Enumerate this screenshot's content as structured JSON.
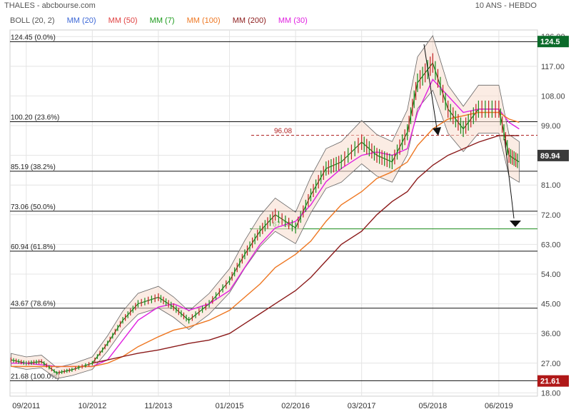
{
  "header": {
    "title": "THALES - abcbourse.com",
    "period": "10 ANS - HEBDO"
  },
  "legend": [
    {
      "label": "BOLL (20, 2)",
      "color": "#555555"
    },
    {
      "label": "MM (20)",
      "color": "#3a66d6"
    },
    {
      "label": "MM (50)",
      "color": "#e04040"
    },
    {
      "label": "MM (7)",
      "color": "#1a9a1a"
    },
    {
      "label": "MM (100)",
      "color": "#ee7722"
    },
    {
      "label": "MM (200)",
      "color": "#8b1a1a"
    },
    {
      "label": "MM (30)",
      "color": "#e020e0"
    }
  ],
  "chart_data": {
    "type": "line",
    "title": "THALES - abcbourse.com",
    "subtitle": "10 ANS - HEBDO",
    "xlabel": "",
    "ylabel": "",
    "x_ticks": [
      "09/2011",
      "10/2012",
      "11/2013",
      "01/2015",
      "02/2016",
      "03/2017",
      "05/2018",
      "06/2019"
    ],
    "y_ticks": [
      18.0,
      27.0,
      36.0,
      45.0,
      54.0,
      63.0,
      72.0,
      81.0,
      90.0,
      99.0,
      108.0,
      117.0,
      126.0
    ],
    "ylim": [
      17.0,
      128.0
    ],
    "x": [
      "2011-06",
      "2011-09",
      "2011-12",
      "2012-03",
      "2012-06",
      "2012-10",
      "2013-01",
      "2013-04",
      "2013-07",
      "2013-11",
      "2014-02",
      "2014-05",
      "2014-09",
      "2015-01",
      "2015-04",
      "2015-07",
      "2015-10",
      "2016-02",
      "2016-05",
      "2016-08",
      "2016-11",
      "2017-03",
      "2017-06",
      "2017-09",
      "2017-12",
      "2018-02",
      "2018-05",
      "2018-08",
      "2018-11",
      "2019-02",
      "2019-06",
      "2019-08",
      "2019-10"
    ],
    "series": [
      {
        "name": "",
        "values": [
          28,
          27,
          27.5,
          24,
          25,
          27,
          33,
          40,
          45,
          47,
          44,
          40,
          45,
          52,
          60,
          67,
          72,
          68,
          78,
          86,
          88,
          94,
          90,
          88,
          97,
          112,
          118,
          104,
          98,
          104,
          104,
          90,
          88
        ]
      },
      {
        "name": "MM (30)",
        "values": [
          27,
          27,
          26.5,
          26,
          26,
          26,
          28,
          34,
          40,
          44,
          45,
          43,
          45,
          49,
          56,
          63,
          68,
          70,
          75,
          82,
          86,
          90,
          91,
          90,
          92,
          103,
          113,
          108,
          103,
          104,
          104,
          100,
          98
        ]
      },
      {
        "name": "MM (100)",
        "values": [
          26,
          26,
          26,
          26,
          26,
          26,
          27,
          29,
          32,
          35,
          37,
          38,
          40,
          43,
          47,
          51,
          56,
          60,
          64,
          70,
          75,
          79,
          83,
          85,
          88,
          93,
          98,
          101,
          102,
          103,
          103,
          101,
          100
        ]
      },
      {
        "name": "MM (200)",
        "values": [
          null,
          null,
          null,
          null,
          null,
          27,
          28,
          29,
          30,
          31,
          32,
          33,
          34,
          36,
          39,
          42,
          45,
          49,
          53,
          58,
          63,
          67,
          72,
          76,
          79,
          83,
          87,
          90,
          92,
          94,
          96,
          96,
          96
        ]
      }
    ],
    "horizontal_levels": [
      {
        "label": "124.45  (0.0%)",
        "value": 124.45
      },
      {
        "label": "100.20  (23.6%)",
        "value": 100.2
      },
      {
        "label": "85.19  (38.2%)",
        "value": 85.19
      },
      {
        "label": "73.06  (50.0%)",
        "value": 73.06
      },
      {
        "label": "60.94  (61.8%)",
        "value": 60.94
      },
      {
        "label": "43.67  (78.6%)",
        "value": 43.67
      },
      {
        "label": "21.68  (100.0%)",
        "value": 21.68
      }
    ],
    "annotations": [
      {
        "label": "96.08",
        "value": 96.08,
        "color": "#b02020",
        "style": "dashed"
      },
      {
        "label": "67.70",
        "value": 67.7,
        "color": "#1a8a1a",
        "style": "solid"
      }
    ],
    "price_badges": [
      {
        "label": "124.5",
        "value": 124.5,
        "color": "#0b6b2a"
      },
      {
        "label": "89.94",
        "value": 89.94,
        "color": "#3a3a3a"
      },
      {
        "label": "21.61",
        "value": 21.61,
        "color": "#b01818"
      }
    ],
    "grid": true,
    "legend_placement": "top-left"
  }
}
